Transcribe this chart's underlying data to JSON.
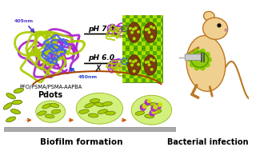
{
  "bg_color": "#ffffff",
  "pdots_label_line1": "PFO/PSMA/PSMA-AAPBA",
  "pdots_label_line2": "Pdots",
  "ph74_label": "pH 7.4",
  "ph60_label": "pH 6.0",
  "biofilm_label": "Biofilm formation",
  "bacteria_label": "Bacterial infection",
  "label_405": "405nm",
  "label_450": "450nm",
  "green_bacteria": "#aacc00",
  "green_bright": "#ccee00",
  "purple_color": "#aa22cc",
  "blue_color": "#4466ee",
  "biofilm_green": "#ccee66",
  "biofilm_edge": "#88aa00",
  "arrow_orange": "#cc5500",
  "mouse_body": "#f0d090",
  "mouse_outline": "#bb7722",
  "gray_surface": "#bbbbbb",
  "checker_light": "#aadd00",
  "checker_dark": "#55aa00",
  "brown_bact": "#7a3c10",
  "panel_bg": "#88bb00",
  "x_color": "#222222"
}
